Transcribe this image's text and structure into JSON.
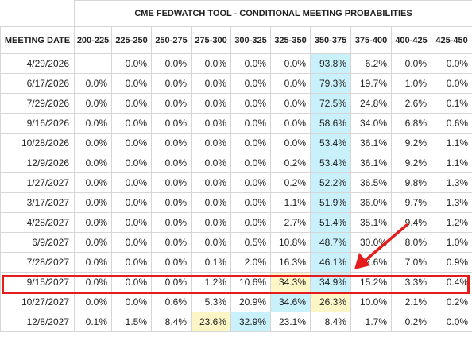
{
  "title": "CME FEDWATCH TOOL - CONDITIONAL MEETING PROBABILITIES",
  "date_header": "MEETING DATE",
  "columns": [
    "200-225",
    "225-250",
    "250-275",
    "275-300",
    "300-325",
    "325-350",
    "350-375",
    "375-400",
    "400-425",
    "425-450"
  ],
  "rows": [
    {
      "date": "4/29/2026",
      "values": [
        "",
        "0.0%",
        "0.0%",
        "0.0%",
        "0.0%",
        "0.0%",
        "93.8%",
        "6.2%",
        "0.0%",
        "0.0%"
      ]
    },
    {
      "date": "6/17/2026",
      "values": [
        "0.0%",
        "0.0%",
        "0.0%",
        "0.0%",
        "0.0%",
        "0.0%",
        "79.3%",
        "19.7%",
        "1.0%",
        "0.0%"
      ]
    },
    {
      "date": "7/29/2026",
      "values": [
        "0.0%",
        "0.0%",
        "0.0%",
        "0.0%",
        "0.0%",
        "0.0%",
        "72.5%",
        "24.8%",
        "2.6%",
        "0.1%"
      ]
    },
    {
      "date": "9/16/2026",
      "values": [
        "0.0%",
        "0.0%",
        "0.0%",
        "0.0%",
        "0.0%",
        "0.0%",
        "58.6%",
        "34.0%",
        "6.8%",
        "0.6%"
      ]
    },
    {
      "date": "10/28/2026",
      "values": [
        "0.0%",
        "0.0%",
        "0.0%",
        "0.0%",
        "0.0%",
        "0.0%",
        "53.4%",
        "36.1%",
        "9.2%",
        "1.1%"
      ]
    },
    {
      "date": "12/9/2026",
      "values": [
        "0.0%",
        "0.0%",
        "0.0%",
        "0.0%",
        "0.0%",
        "0.2%",
        "53.4%",
        "36.1%",
        "9.2%",
        "1.1%"
      ]
    },
    {
      "date": "1/27/2027",
      "values": [
        "0.0%",
        "0.0%",
        "0.0%",
        "0.0%",
        "0.0%",
        "0.2%",
        "52.2%",
        "36.5%",
        "9.8%",
        "1.3%"
      ]
    },
    {
      "date": "3/17/2027",
      "values": [
        "0.0%",
        "0.0%",
        "0.0%",
        "0.0%",
        "0.0%",
        "1.1%",
        "51.9%",
        "36.0%",
        "9.7%",
        "1.3%"
      ]
    },
    {
      "date": "4/28/2027",
      "values": [
        "0.0%",
        "0.0%",
        "0.0%",
        "0.0%",
        "0.0%",
        "2.7%",
        "51.4%",
        "35.1%",
        "9.4%",
        "1.2%"
      ]
    },
    {
      "date": "6/9/2027",
      "values": [
        "0.0%",
        "0.0%",
        "0.0%",
        "0.0%",
        "0.5%",
        "10.8%",
        "48.7%",
        "30.0%",
        "8.0%",
        "1.0%"
      ]
    },
    {
      "date": "7/28/2027",
      "values": [
        "0.0%",
        "0.0%",
        "0.0%",
        "0.1%",
        "2.0%",
        "16.3%",
        "46.1%",
        "27.6%",
        "7.0%",
        "0.9%"
      ]
    },
    {
      "date": "9/15/2027",
      "values": [
        "0.0%",
        "0.0%",
        "0.0%",
        "1.2%",
        "10.6%",
        "34.3%",
        "34.9%",
        "15.2%",
        "3.3%",
        "0.4%"
      ]
    },
    {
      "date": "10/27/2027",
      "values": [
        "0.0%",
        "0.0%",
        "0.6%",
        "5.3%",
        "20.9%",
        "34.6%",
        "26.3%",
        "10.0%",
        "2.1%",
        "0.2%"
      ]
    },
    {
      "date": "12/8/2027",
      "values": [
        "0.1%",
        "1.5%",
        "8.4%",
        "23.6%",
        "32.9%",
        "23.1%",
        "8.4%",
        "1.7%",
        "0.2%",
        "0.0%"
      ]
    }
  ],
  "cell_colors": {
    "max": "#c9f1fb",
    "second": "#fcf6c6"
  },
  "highlighted_meeting": "9/15/2027",
  "annotation_color": "#e41c1c"
}
